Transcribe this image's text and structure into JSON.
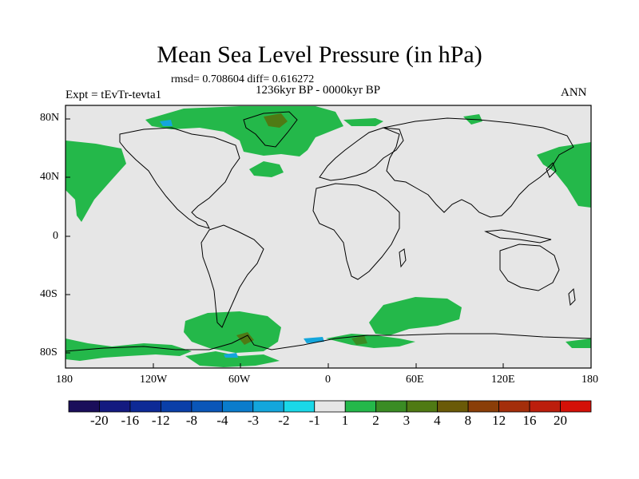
{
  "title": "Mean Sea Level Pressure (in hPa)",
  "stats_line": "rmsd= 0.708604  diff= 0.616272",
  "period_line": "1236kyr BP - 0000kyr BP",
  "experiment_label": "Expt = tEvTr-tevta1",
  "season_label": "ANN",
  "lat_ticks": [
    "80N",
    "40N",
    "0",
    "40S",
    "80S"
  ],
  "lon_ticks": [
    "180",
    "120W",
    "60W",
    "0",
    "60E",
    "120E",
    "180"
  ],
  "colorbar": {
    "colors": [
      "#1a0e5a",
      "#141a80",
      "#0d2a96",
      "#0a3fa8",
      "#0a56b8",
      "#0a7ccc",
      "#14a6dc",
      "#1ad8e8",
      "#e6e6e6",
      "#24b84a",
      "#3a8c24",
      "#4f7a14",
      "#6a5a08",
      "#8a3e08",
      "#a42e0a",
      "#bc1e0c",
      "#d41008"
    ],
    "labels": [
      "-20",
      "-16",
      "-12",
      "-8",
      "-4",
      "-3",
      "-2",
      "-1",
      "1",
      "2",
      "3",
      "4",
      "8",
      "12",
      "16",
      "20"
    ]
  },
  "colors": {
    "background_field": "#e6e6e6",
    "positive_anomaly": "#24b84a",
    "coastline": "#000000"
  }
}
